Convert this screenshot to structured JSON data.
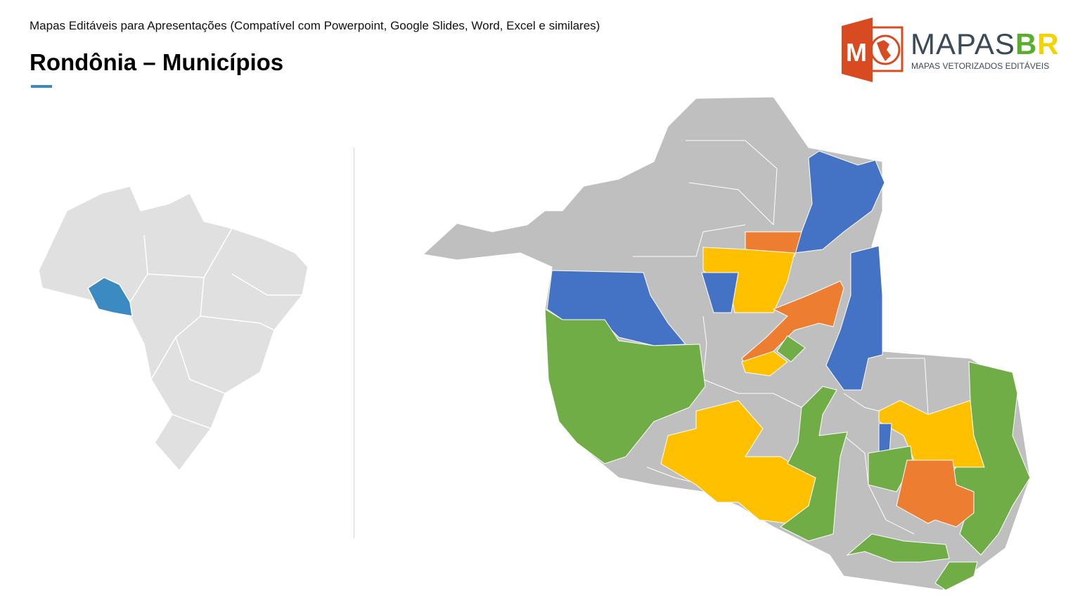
{
  "header": {
    "subtitle": "Mapas Editáveis para Apresentações (Compatível com Powerpoint, Google Slides, Word, Excel e similares)",
    "title": "Rondônia – Municípios"
  },
  "logo": {
    "brand_main": "MAPAS",
    "brand_b": "B",
    "brand_r": "R",
    "tagline": "MAPAS VETORIZADOS EDITÁVEIS",
    "icon_letter": "M"
  },
  "colors": {
    "accent": "#3b8ac1",
    "highlight_state": "#3b8ac1",
    "base": "#bfbfbf",
    "brazil": "#e0e0e0",
    "blue": "#4472c4",
    "green": "#70ad47",
    "orange": "#ed7d31",
    "yellow": "#ffc000",
    "logo_red": "#d84b20"
  }
}
